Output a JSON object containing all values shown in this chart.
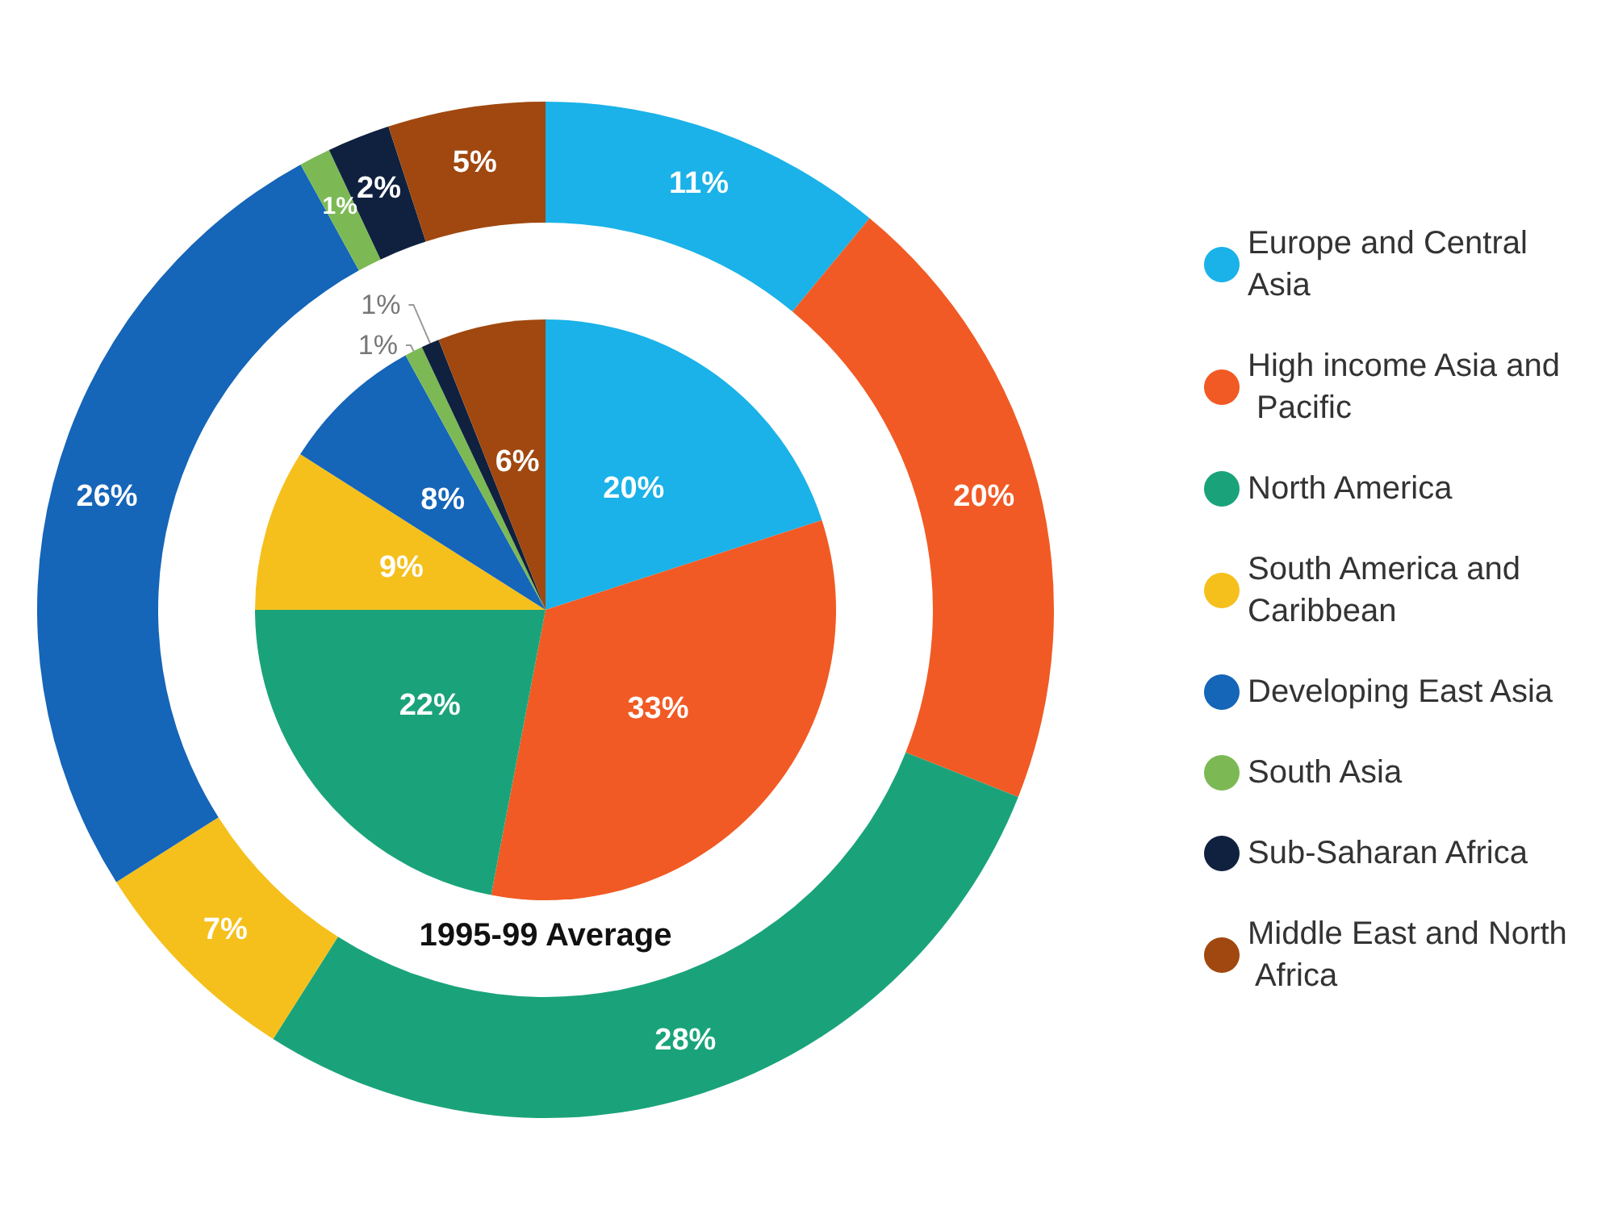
{
  "chart_data": {
    "type": "donut",
    "categories": [
      "Europe and Central Asia",
      "High income Asia and Pacific",
      "North America",
      "South America and Caribbean",
      "Developing East Asia",
      "South Asia",
      "Sub-Saharan Africa",
      "Middle East and North Africa"
    ],
    "colors": [
      "#1ab2e8",
      "#f15a24",
      "#1aa37a",
      "#f5c01c",
      "#1565b8",
      "#7cb955",
      "#10213f",
      "#a0480f"
    ],
    "series": [
      {
        "values": [
          11,
          20,
          28,
          7,
          26,
          1,
          2,
          5
        ],
        "value_labels": [
          "11%",
          "20%",
          "28%",
          "7%",
          "26%",
          "1%",
          "2%",
          "5%"
        ]
      },
      {
        "type": "pie",
        "values": [
          20,
          33,
          22,
          9,
          8,
          1,
          1,
          6
        ],
        "value_labels": [
          "20%",
          "33%",
          "22%",
          "9%",
          "8%",
          "1%",
          "1%",
          "6%"
        ]
      }
    ],
    "legend": "right",
    "annotations": [
      "1995-99 Average"
    ]
  }
}
